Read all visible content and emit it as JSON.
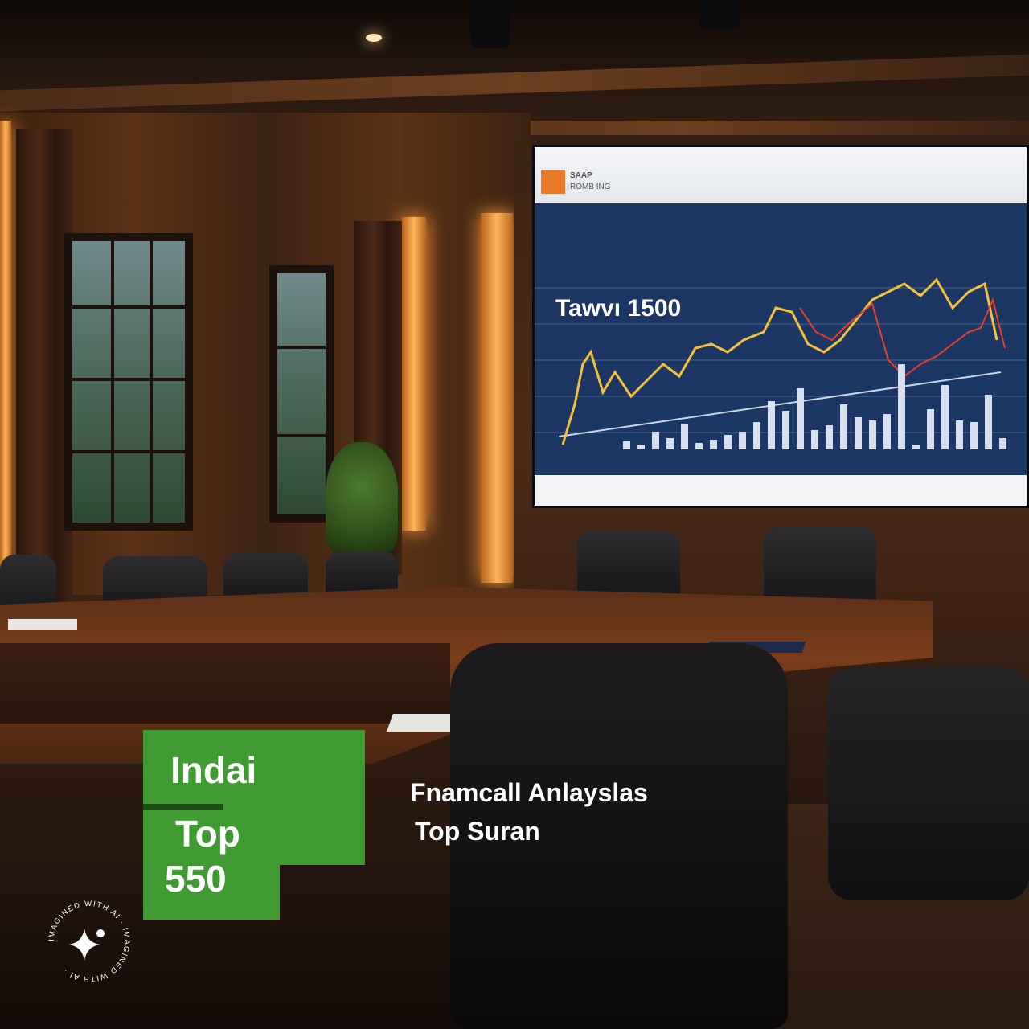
{
  "scene": {
    "description_type": "boardroom with large financial chart screen",
    "colors": {
      "badge_green": "#3f9a32",
      "screen_blue": "#1c3763",
      "wood": "#6b3f20",
      "warm_light": "#ffb45a"
    }
  },
  "screen": {
    "chart_title": "Tawvı 1500",
    "header_small_1": "SAAP",
    "header_small_2": "ROMB ING"
  },
  "overlay": {
    "badge_line1": "Indai",
    "badge_line2": "Top",
    "badge_line3": "550",
    "caption_line1": "Fnamcall Anlayslas",
    "caption_line2": "Top Suran"
  },
  "watermark": {
    "ring_text": "IMAGINED WITH AI · IMAGINED WITH AI ·",
    "icon": "sparkle-icon"
  }
}
